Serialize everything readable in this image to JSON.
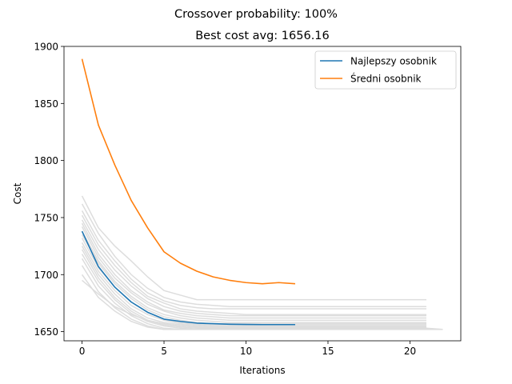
{
  "chart_data": {
    "type": "line",
    "suptitle": "Crossover probability: 100%",
    "title": "Best cost avg: 1656.16",
    "xlabel": "Iterations",
    "ylabel": "Cost",
    "xlim": [
      -1.1,
      23.1
    ],
    "ylim": [
      1642,
      1900
    ],
    "xticks": [
      0,
      5,
      10,
      15,
      20
    ],
    "yticks": [
      1650,
      1700,
      1750,
      1800,
      1850,
      1900
    ],
    "grid": false,
    "legend_position": "top-right",
    "colors": {
      "best": "#1f77b4",
      "avg": "#ff7f0e",
      "background_runs": "#dddddd"
    },
    "series": [
      {
        "name": "Najlepszy osobnik",
        "color": "#1f77b4",
        "x": [
          0,
          1,
          2,
          3,
          4,
          5,
          6,
          7,
          8,
          9,
          10,
          11,
          12,
          13
        ],
        "values": [
          1738,
          1707,
          1689,
          1676,
          1667,
          1661,
          1659,
          1657.5,
          1657,
          1656.5,
          1656.3,
          1656.2,
          1656.2,
          1656.2
        ]
      },
      {
        "name": "Średni osobnik",
        "color": "#ff7f0e",
        "x": [
          0,
          1,
          2,
          3,
          4,
          5,
          6,
          7,
          8,
          9,
          10,
          11,
          12,
          13
        ],
        "values": [
          1889,
          1831,
          1796,
          1765,
          1741,
          1720,
          1710,
          1703,
          1698,
          1695,
          1693,
          1692,
          1693,
          1692
        ]
      }
    ],
    "background_runs": [
      [
        1769,
        1741,
        1725,
        1712,
        1698,
        1686,
        1682,
        1678,
        1678,
        1678,
        1678,
        1678,
        1678,
        1678,
        1678,
        1678,
        1678,
        1678,
        1678,
        1678,
        1678,
        1678
      ],
      [
        1762,
        1736,
        1716,
        1700,
        1688,
        1680,
        1676,
        1674,
        1673,
        1672,
        1672,
        1672,
        1672,
        1672,
        1672,
        1672,
        1672,
        1672,
        1672,
        1672,
        1672,
        1672
      ],
      [
        1756,
        1730,
        1712,
        1696,
        1684,
        1677,
        1673,
        1671,
        1670,
        1670,
        1670,
        1670,
        1670,
        1670,
        1670,
        1670,
        1670,
        1670,
        1670,
        1670,
        1670,
        1670
      ],
      [
        1752,
        1726,
        1708,
        1693,
        1681,
        1675,
        1670,
        1668,
        1667,
        1666,
        1665,
        1665,
        1665,
        1665,
        1665,
        1665,
        1665,
        1665,
        1665,
        1665,
        1665,
        1665
      ],
      [
        1748,
        1722,
        1704,
        1690,
        1679,
        1672,
        1668,
        1666,
        1665,
        1664,
        1664,
        1664,
        1664,
        1664,
        1664,
        1664,
        1664,
        1664,
        1664,
        1664,
        1664,
        1664
      ],
      [
        1745,
        1718,
        1700,
        1686,
        1676,
        1669,
        1666,
        1664,
        1663,
        1662,
        1662,
        1662,
        1662,
        1662,
        1662,
        1662,
        1662,
        1662,
        1662,
        1662,
        1662,
        1662
      ],
      [
        1742,
        1715,
        1697,
        1684,
        1674,
        1668,
        1664,
        1662,
        1661,
        1660,
        1660,
        1660,
        1660,
        1660,
        1660,
        1660,
        1660,
        1660,
        1660,
        1660,
        1660,
        1660
      ],
      [
        1738,
        1712,
        1694,
        1681,
        1671,
        1665,
        1662,
        1660,
        1659,
        1658,
        1658,
        1658,
        1658,
        1658,
        1658,
        1658,
        1658,
        1658,
        1658,
        1658,
        1658,
        1658
      ],
      [
        1735,
        1710,
        1692,
        1679,
        1669,
        1663,
        1660,
        1658,
        1657,
        1657,
        1657,
        1657,
        1657,
        1657,
        1657,
        1657,
        1657,
        1657,
        1657,
        1657,
        1657,
        1657
      ],
      [
        1732,
        1706,
        1689,
        1676,
        1667,
        1661,
        1658,
        1657,
        1656,
        1656,
        1656,
        1656,
        1656,
        1656,
        1656,
        1656,
        1656,
        1656,
        1656,
        1656,
        1656,
        1656
      ],
      [
        1728,
        1703,
        1686,
        1673,
        1665,
        1660,
        1657,
        1656,
        1655,
        1655,
        1655,
        1655,
        1655,
        1655,
        1655,
        1655,
        1655,
        1655,
        1655,
        1655,
        1655,
        1655
      ],
      [
        1725,
        1700,
        1683,
        1670,
        1662,
        1658,
        1656,
        1655,
        1654,
        1654,
        1654,
        1654,
        1654,
        1654,
        1654,
        1654,
        1654,
        1654,
        1654,
        1654,
        1654,
        1654
      ],
      [
        1722,
        1697,
        1680,
        1668,
        1660,
        1656,
        1654,
        1653,
        1653,
        1653,
        1653,
        1653,
        1653,
        1653,
        1653,
        1653,
        1653,
        1653,
        1653,
        1653,
        1653,
        1653,
        1652
      ],
      [
        1718,
        1694,
        1678,
        1666,
        1659,
        1655,
        1653,
        1652,
        1652,
        1652,
        1652,
        1652,
        1652,
        1652,
        1652,
        1652,
        1652,
        1652,
        1652,
        1652,
        1652,
        1652,
        1652
      ],
      [
        1714,
        1690,
        1675,
        1664,
        1657,
        1653,
        1652,
        1652,
        1652,
        1652,
        1652,
        1652,
        1652,
        1652,
        1652,
        1652,
        1652,
        1652,
        1652,
        1652,
        1652,
        1652
      ],
      [
        1708,
        1685,
        1671,
        1661,
        1655,
        1652,
        1652,
        1652,
        1652,
        1652,
        1652,
        1652,
        1652,
        1652,
        1652,
        1652,
        1652,
        1652,
        1652,
        1652
      ],
      [
        1700,
        1680,
        1668,
        1659,
        1654,
        1652,
        1652,
        1652,
        1652,
        1652,
        1652,
        1652,
        1652,
        1652,
        1652,
        1652,
        1652,
        1652,
        1652,
        1652,
        1652
      ],
      [
        1695,
        1683,
        1672,
        1665,
        1660,
        1657,
        1655,
        1654,
        1654,
        1654,
        1654,
        1654,
        1654,
        1654,
        1654,
        1654,
        1654,
        1654,
        1654,
        1654,
        1654,
        1654
      ]
    ]
  }
}
